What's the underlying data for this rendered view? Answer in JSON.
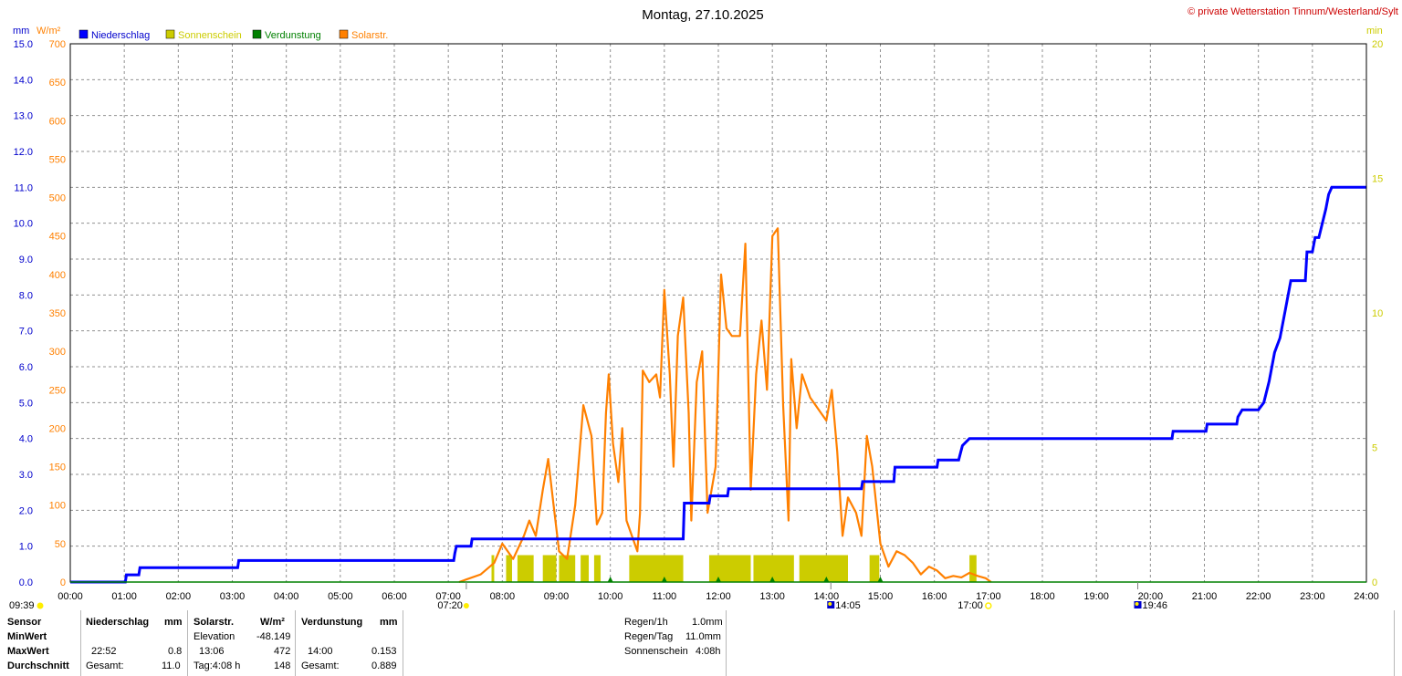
{
  "header": {
    "title": "Montag, 27.10.2025",
    "copyright": "© private Wetterstation Tinnum/Westerland/Sylt"
  },
  "axes": {
    "unit_mm": "mm",
    "unit_wm2": "W/m²",
    "unit_min": "min",
    "mm_ticks": [
      "0.0",
      "1.0",
      "2.0",
      "3.0",
      "4.0",
      "5.0",
      "6.0",
      "7.0",
      "8.0",
      "9.0",
      "10.0",
      "11.0",
      "12.0",
      "13.0",
      "14.0",
      "15.0"
    ],
    "wm2_ticks": [
      "0",
      "50",
      "100",
      "150",
      "200",
      "250",
      "300",
      "350",
      "400",
      "450",
      "500",
      "550",
      "600",
      "650",
      "700"
    ],
    "min_ticks": [
      "0",
      "5",
      "10",
      "15",
      "20"
    ],
    "x_ticks": [
      "00:00",
      "01:00",
      "02:00",
      "03:00",
      "04:00",
      "05:00",
      "06:00",
      "07:00",
      "08:00",
      "09:00",
      "10:00",
      "11:00",
      "12:00",
      "13:00",
      "14:00",
      "15:00",
      "16:00",
      "17:00",
      "18:00",
      "19:00",
      "20:00",
      "21:00",
      "22:00",
      "23:00",
      "24:00"
    ]
  },
  "legend": [
    {
      "label": "Niederschlag",
      "color": "#0000ff"
    },
    {
      "label": "Sonnenschein",
      "color": "#cccc00"
    },
    {
      "label": "Verdunstung",
      "color": "#008000"
    },
    {
      "label": "Solarstr.",
      "color": "#ff8000"
    }
  ],
  "colors": {
    "rain": "#0000ff",
    "sun": "#cccc00",
    "evap": "#008000",
    "solar": "#ff8000",
    "min_axis": "#cccc00",
    "wm2_axis": "#ff8000"
  },
  "markers": {
    "moonrise": "09:39",
    "sunrise": "07:20",
    "moon_culm": "14:05",
    "sunset": "17:00",
    "moonset": "19:46"
  },
  "panel": {
    "col_sensor": {
      "header": "Sensor",
      "min": "MinWert",
      "max": "MaxWert",
      "avg": "Durchschnitt"
    },
    "rain": {
      "header": "Niederschlag",
      "unit": "mm",
      "max_time": "22:52",
      "max_val": "0.8",
      "total_label": "Gesamt:",
      "total_val": "11.0"
    },
    "solar": {
      "header": "Solarstr.",
      "unit": "W/m²",
      "min_label": "Elevation",
      "min_val": "-48.149",
      "max_time": "13:06",
      "max_val": "472",
      "avg_label": "Tag:4:08 h",
      "avg_val": "148"
    },
    "evap": {
      "header": "Verdunstung",
      "unit": "mm",
      "max_time": "14:00",
      "max_val": "0.153",
      "total_label": "Gesamt:",
      "total_val": "0.889"
    },
    "summary": {
      "rain_1h_label": "Regen/1h",
      "rain_1h_val": "1.0mm",
      "rain_day_label": "Regen/Tag",
      "rain_day_val": "11.0mm",
      "sun_label": "Sonnenschein",
      "sun_val": "4:08h"
    }
  },
  "chart_data": {
    "type": "line",
    "title": "Montag, 27.10.2025",
    "xlim": [
      0,
      24
    ],
    "y_mm_lim": [
      0,
      15
    ],
    "y_wm2_lim": [
      0,
      700
    ],
    "y_min_lim": [
      0,
      20
    ],
    "grid": true,
    "legend_position": "top-left",
    "series": [
      {
        "name": "Niederschlag",
        "axis": "mm",
        "points": [
          [
            0,
            0
          ],
          [
            1.02,
            0
          ],
          [
            1.04,
            0.2
          ],
          [
            1.27,
            0.2
          ],
          [
            1.29,
            0.4
          ],
          [
            3.1,
            0.4
          ],
          [
            3.12,
            0.6
          ],
          [
            7.1,
            0.6
          ],
          [
            7.12,
            0.8
          ],
          [
            7.15,
            1.0
          ],
          [
            7.42,
            1.0
          ],
          [
            7.44,
            1.2
          ],
          [
            11.35,
            1.2
          ],
          [
            11.37,
            2.2
          ],
          [
            11.83,
            2.2
          ],
          [
            11.85,
            2.4
          ],
          [
            12.17,
            2.4
          ],
          [
            12.19,
            2.6
          ],
          [
            14.65,
            2.6
          ],
          [
            14.67,
            2.8
          ],
          [
            15.25,
            2.8
          ],
          [
            15.27,
            3.2
          ],
          [
            16.05,
            3.2
          ],
          [
            16.07,
            3.4
          ],
          [
            16.45,
            3.4
          ],
          [
            16.52,
            3.8
          ],
          [
            16.65,
            4.0
          ],
          [
            20.4,
            4.0
          ],
          [
            20.42,
            4.2
          ],
          [
            21.03,
            4.2
          ],
          [
            21.05,
            4.4
          ],
          [
            21.6,
            4.4
          ],
          [
            21.62,
            4.6
          ],
          [
            21.7,
            4.8
          ],
          [
            22.0,
            4.8
          ],
          [
            22.1,
            5.0
          ],
          [
            22.2,
            5.6
          ],
          [
            22.3,
            6.4
          ],
          [
            22.4,
            6.8
          ],
          [
            22.5,
            7.6
          ],
          [
            22.6,
            8.4
          ],
          [
            22.87,
            8.4
          ],
          [
            22.9,
            9.2
          ],
          [
            23.0,
            9.2
          ],
          [
            23.05,
            9.6
          ],
          [
            23.12,
            9.6
          ],
          [
            23.25,
            10.4
          ],
          [
            23.3,
            10.8
          ],
          [
            23.36,
            11.0
          ],
          [
            24,
            11.0
          ]
        ]
      },
      {
        "name": "Solarstr.",
        "axis": "wm2",
        "points": [
          [
            7.2,
            0
          ],
          [
            7.6,
            10
          ],
          [
            7.85,
            25
          ],
          [
            8.0,
            50
          ],
          [
            8.2,
            30
          ],
          [
            8.4,
            60
          ],
          [
            8.5,
            80
          ],
          [
            8.62,
            60
          ],
          [
            8.75,
            120
          ],
          [
            8.85,
            160
          ],
          [
            8.95,
            100
          ],
          [
            9.05,
            40
          ],
          [
            9.2,
            30
          ],
          [
            9.35,
            100
          ],
          [
            9.5,
            230
          ],
          [
            9.65,
            190
          ],
          [
            9.75,
            75
          ],
          [
            9.85,
            90
          ],
          [
            9.92,
            220
          ],
          [
            9.97,
            270
          ],
          [
            10.05,
            180
          ],
          [
            10.15,
            130
          ],
          [
            10.22,
            200
          ],
          [
            10.3,
            80
          ],
          [
            10.4,
            60
          ],
          [
            10.5,
            40
          ],
          [
            10.55,
            90
          ],
          [
            10.6,
            275
          ],
          [
            10.72,
            260
          ],
          [
            10.85,
            270
          ],
          [
            10.92,
            240
          ],
          [
            11.0,
            380
          ],
          [
            11.1,
            270
          ],
          [
            11.17,
            150
          ],
          [
            11.25,
            320
          ],
          [
            11.35,
            370
          ],
          [
            11.45,
            220
          ],
          [
            11.5,
            80
          ],
          [
            11.6,
            260
          ],
          [
            11.7,
            300
          ],
          [
            11.8,
            90
          ],
          [
            11.95,
            150
          ],
          [
            12.05,
            400
          ],
          [
            12.15,
            330
          ],
          [
            12.25,
            320
          ],
          [
            12.4,
            320
          ],
          [
            12.5,
            440
          ],
          [
            12.6,
            120
          ],
          [
            12.7,
            270
          ],
          [
            12.8,
            340
          ],
          [
            12.9,
            250
          ],
          [
            13.0,
            450
          ],
          [
            13.1,
            460
          ],
          [
            13.2,
            230
          ],
          [
            13.3,
            80
          ],
          [
            13.35,
            290
          ],
          [
            13.45,
            200
          ],
          [
            13.55,
            270
          ],
          [
            13.7,
            240
          ],
          [
            13.9,
            220
          ],
          [
            14.0,
            210
          ],
          [
            14.1,
            250
          ],
          [
            14.2,
            170
          ],
          [
            14.3,
            60
          ],
          [
            14.4,
            110
          ],
          [
            14.55,
            90
          ],
          [
            14.65,
            60
          ],
          [
            14.75,
            190
          ],
          [
            14.85,
            150
          ],
          [
            15.0,
            50
          ],
          [
            15.15,
            20
          ],
          [
            15.3,
            40
          ],
          [
            15.45,
            35
          ],
          [
            15.6,
            25
          ],
          [
            15.75,
            10
          ],
          [
            15.9,
            20
          ],
          [
            16.05,
            15
          ],
          [
            16.2,
            5
          ],
          [
            16.35,
            8
          ],
          [
            16.5,
            6
          ],
          [
            16.65,
            12
          ],
          [
            16.8,
            8
          ],
          [
            16.95,
            5
          ],
          [
            17.05,
            0
          ]
        ]
      },
      {
        "name": "Sonnenschein",
        "axis": "min",
        "intervals": [
          [
            7.8,
            7.85
          ],
          [
            8.07,
            8.18
          ],
          [
            8.28,
            8.58
          ],
          [
            8.75,
            9.0
          ],
          [
            9.05,
            9.35
          ],
          [
            9.45,
            9.6
          ],
          [
            9.7,
            9.82
          ],
          [
            10.35,
            11.35
          ],
          [
            11.83,
            12.6
          ],
          [
            12.65,
            13.4
          ],
          [
            13.5,
            14.4
          ],
          [
            14.8,
            14.98
          ],
          [
            16.65,
            16.78
          ]
        ],
        "value": 1.0
      },
      {
        "name": "Verdunstung",
        "axis": "mm",
        "hourly_marks": [
          "10:00",
          "11:00",
          "12:00",
          "13:00",
          "14:00",
          "15:00"
        ]
      }
    ]
  }
}
